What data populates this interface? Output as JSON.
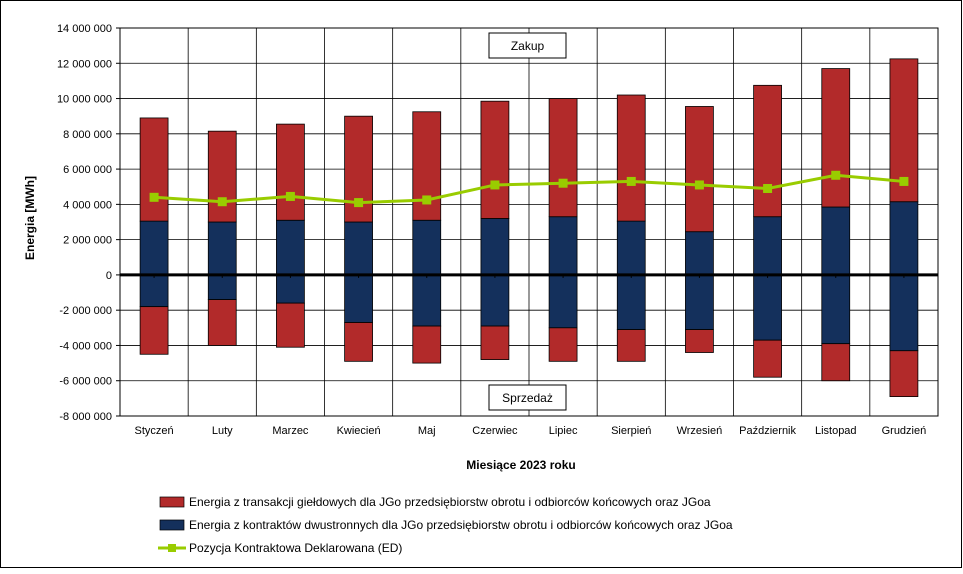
{
  "chart_data": {
    "type": "bar",
    "stacked": true,
    "categories": [
      "Styczeń",
      "Luty",
      "Marzec",
      "Kwiecień",
      "Maj",
      "Czerwiec",
      "Lipiec",
      "Sierpień",
      "Wrzesień",
      "Październik",
      "Listopad",
      "Grudzień"
    ],
    "xlabel": "Miesiące 2023  roku",
    "ylabel": "Energia [MWh]",
    "ylim": [
      -8000000,
      14000000
    ],
    "ytick_step": 2000000,
    "ytick_labels": [
      "-8 000 000",
      "-6 000 000",
      "-4 000 000",
      "-2 000 000",
      "0",
      "2 000 000",
      "4 000 000",
      "6 000 000",
      "8 000 000",
      "10 000 000",
      "12 000 000",
      "14 000 000"
    ],
    "grid": true,
    "legend_position": "bottom",
    "annotations": {
      "top": "Zakup",
      "bottom": "Sprzedaż"
    },
    "series": [
      {
        "name": "Energia z transakcji giełdowych dla JGo przedsiębiorstw obrotu i odbiorców końcowych oraz JGoa",
        "kind": "bar",
        "color": "#b22a2a",
        "values_positive": [
          5850000,
          5150000,
          5450000,
          6000000,
          6150000,
          6650000,
          6700000,
          7150000,
          7100000,
          7450000,
          7850000,
          8100000
        ],
        "values_negative": [
          -2700000,
          -2600000,
          -2500000,
          -2200000,
          -2100000,
          -1900000,
          -1900000,
          -1800000,
          -1300000,
          -2100000,
          -2100000,
          -2600000
        ]
      },
      {
        "name": "Energia z kontraktów dwustronnych dla JGo przedsiębiorstw obrotu i odbiorców końcowych oraz JGoa",
        "kind": "bar",
        "color": "#14305c",
        "values_positive": [
          3050000,
          3000000,
          3100000,
          3000000,
          3100000,
          3200000,
          3300000,
          3050000,
          2450000,
          3300000,
          3850000,
          4150000
        ],
        "values_negative": [
          -1800000,
          -1400000,
          -1600000,
          -2700000,
          -2900000,
          -2900000,
          -3000000,
          -3100000,
          -3100000,
          -3700000,
          -3900000,
          -4300000
        ]
      },
      {
        "name": "Pozycja Kontraktowa Deklarowana (ED)",
        "kind": "line",
        "color": "#99cc00",
        "values": [
          4400000,
          4150000,
          4450000,
          4100000,
          4250000,
          5100000,
          5200000,
          5300000,
          5100000,
          4900000,
          5650000,
          5300000
        ]
      }
    ]
  }
}
